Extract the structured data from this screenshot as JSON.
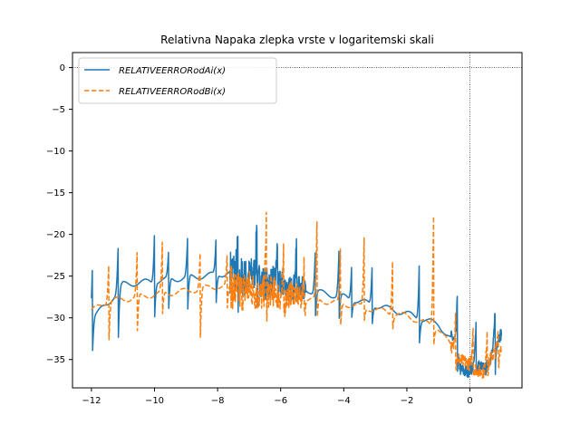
{
  "chart_data": {
    "type": "line",
    "title": "Relativna Napaka zlepka vrste v logaritemski skali",
    "xlabel": "",
    "ylabel": "",
    "xlim": [
      -12.6,
      1.65
    ],
    "ylim": [
      -38.4,
      1.8
    ],
    "xticks": [
      -12,
      -10,
      -8,
      -6,
      -4,
      -2,
      0
    ],
    "yticks": [
      0,
      -5,
      -10,
      -15,
      -20,
      -25,
      -30,
      -35
    ],
    "grid": false,
    "reference_lines": {
      "x": 0,
      "y": 0,
      "style": "dotted"
    },
    "legend": {
      "position": "top-left"
    },
    "series": [
      {
        "name": "RELATIVEERRORodAi(x)",
        "color": "#1f77b4",
        "dash": "solid",
        "baseline": [
          [
            -12,
            -30
          ],
          [
            -11.5,
            -28.4
          ],
          [
            -11,
            -26
          ],
          [
            -10,
            -25.6
          ],
          [
            -9,
            -25.2
          ],
          [
            -8,
            -24.8
          ],
          [
            -7.5,
            -24.6
          ],
          [
            -7,
            -25
          ],
          [
            -6,
            -26
          ],
          [
            -5,
            -26.8
          ],
          [
            -4,
            -27.5
          ],
          [
            -3,
            -28.5
          ],
          [
            -2,
            -29.5
          ],
          [
            -1,
            -30.8
          ],
          [
            -0.5,
            -33
          ],
          [
            -0.3,
            -36
          ],
          [
            0,
            -36.2
          ],
          [
            0.5,
            -35.8
          ],
          [
            1,
            -32
          ]
        ],
        "spikes": [
          [
            -11.97,
            -24.0,
            -34.7
          ],
          [
            -11.15,
            -21.0,
            -33.0
          ],
          [
            -10.0,
            -19.6,
            -30.5
          ],
          [
            -9.55,
            -21.5,
            -29.0
          ],
          [
            -8.95,
            -20.0,
            -29.5
          ],
          [
            -8.05,
            -20.3,
            -28.7
          ],
          [
            -7.35,
            -20.2,
            -30.0
          ],
          [
            -6.75,
            -17.3,
            -29.0
          ],
          [
            -6.1,
            -20.5,
            -28.5
          ],
          [
            -5.5,
            -21.0,
            -28.8
          ],
          [
            -4.9,
            -21.5,
            -30.0
          ],
          [
            -4.15,
            -21.5,
            -30.5
          ],
          [
            -3.75,
            -23.5,
            -30.2
          ],
          [
            -3.1,
            -23.5,
            -31.0
          ],
          [
            -1.6,
            -22.0,
            -33.0
          ],
          [
            -0.4,
            -26.8,
            -36.0
          ],
          [
            0.2,
            -28.5,
            -36.5
          ],
          [
            0.8,
            -28.5,
            -36.5
          ]
        ]
      },
      {
        "name": "RELATIVEERRORodBi(x)",
        "color": "#ff7f0e",
        "dash": "dashed",
        "baseline": [
          [
            -12,
            -29.2
          ],
          [
            -11.5,
            -28
          ],
          [
            -11,
            -27.8
          ],
          [
            -10,
            -27.2
          ],
          [
            -9,
            -26.8
          ],
          [
            -8,
            -26.2
          ],
          [
            -7,
            -26.8
          ],
          [
            -6,
            -27.2
          ],
          [
            -5,
            -27.8
          ],
          [
            -4,
            -28.3
          ],
          [
            -3,
            -29
          ],
          [
            -2,
            -29.8
          ],
          [
            -1,
            -31.2
          ],
          [
            -0.5,
            -34
          ],
          [
            0,
            -36
          ],
          [
            0.5,
            -36.2
          ],
          [
            1,
            -33
          ]
        ],
        "spikes": [
          [
            -11.45,
            -23.5,
            -33.5
          ],
          [
            -10.55,
            -22.0,
            -32.5
          ],
          [
            -9.75,
            -20.5,
            -30.0
          ],
          [
            -8.55,
            -21.7,
            -33.0
          ],
          [
            -7.7,
            -22.5,
            -29.5
          ],
          [
            -6.45,
            -15.8,
            -30.0
          ],
          [
            -5.9,
            -21.5,
            -29.5
          ],
          [
            -5.25,
            -21.5,
            -29.5
          ],
          [
            -4.85,
            -18.5,
            -30.5
          ],
          [
            -4.1,
            -20.5,
            -31.0
          ],
          [
            -3.35,
            -19.3,
            -30.5
          ],
          [
            -2.45,
            -22.5,
            -31.5
          ],
          [
            -1.15,
            -16.3,
            -33.5
          ],
          [
            -0.45,
            -27.5,
            -36.0
          ],
          [
            0.1,
            -30.5,
            -36.6
          ],
          [
            0.55,
            -30.8,
            -36.7
          ],
          [
            0.9,
            -31.0,
            -36.0
          ]
        ]
      }
    ],
    "noisy_region": {
      "x_range": [
        -7.6,
        -5.2
      ],
      "y_range": [
        -31.5,
        -22.0
      ]
    }
  }
}
